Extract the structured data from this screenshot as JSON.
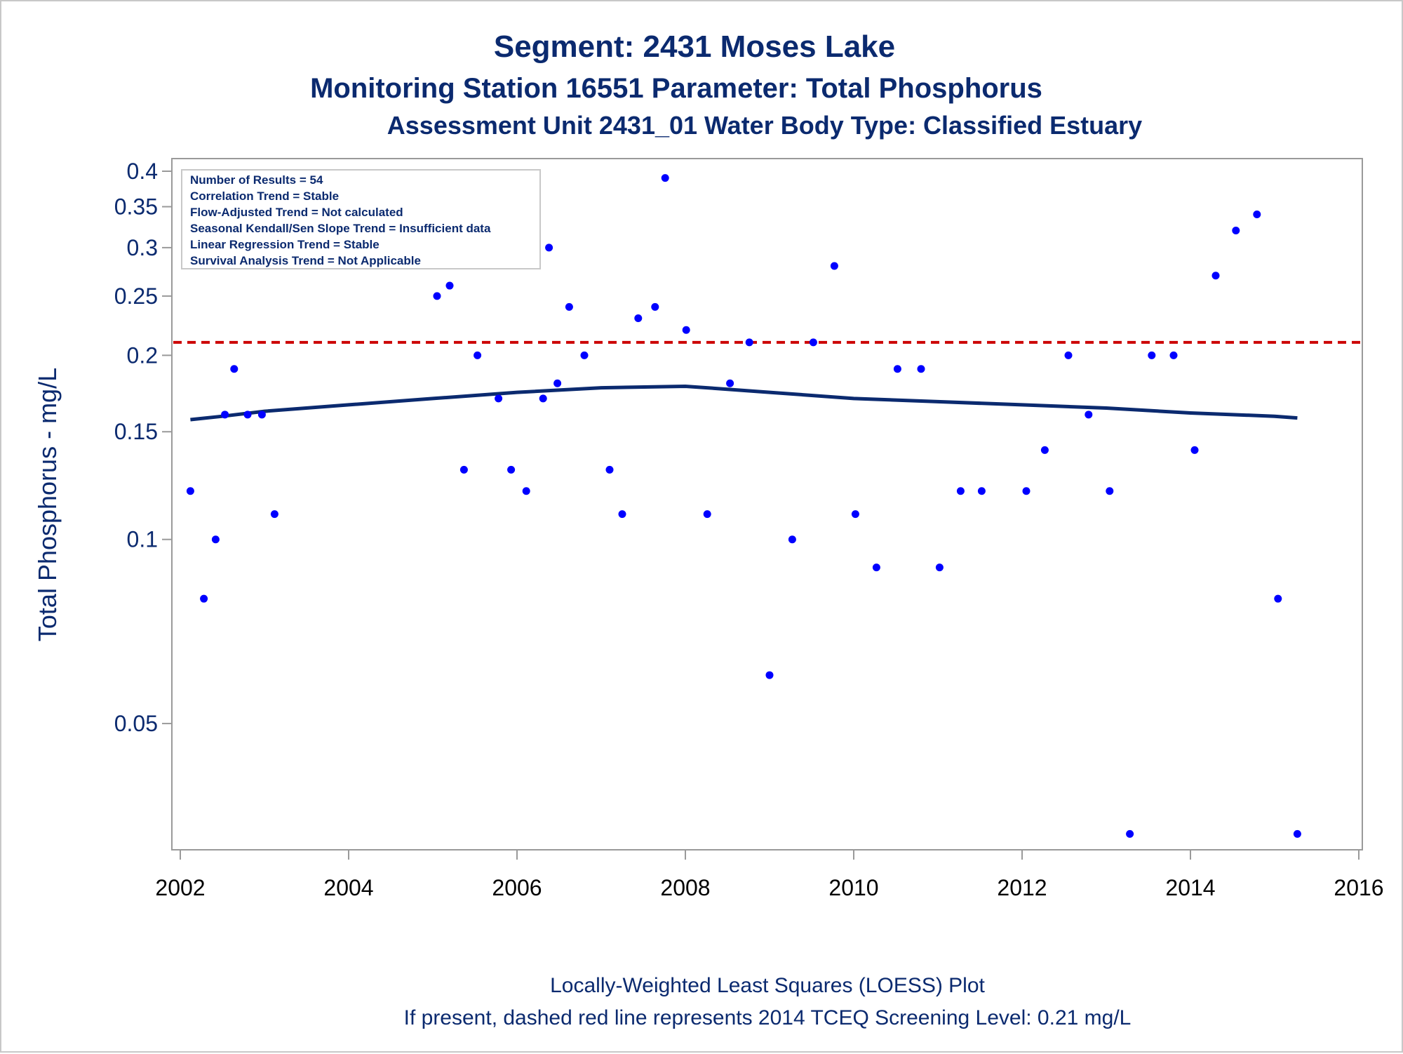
{
  "chart_data": {
    "type": "scatter",
    "title": "Segment: 2431  Moses Lake",
    "subtitle1": "Monitoring Station 16551 Parameter: Total Phosphorus",
    "subtitle2": "Assessment Unit 2431_01   Water Body Type: Classified Estuary",
    "ylabel": "Total Phosphorus - mg/L",
    "xlabel": "",
    "y_scale": "log",
    "xlim": [
      2002.0,
      2016.0
    ],
    "ylim": [
      0.032,
      0.4
    ],
    "x_ticks": [
      "2002",
      "2004",
      "2006",
      "2008",
      "2010",
      "2012",
      "2014",
      "2016"
    ],
    "y_ticks": [
      {
        "value": 0.4,
        "label": "0.4"
      },
      {
        "value": 0.35,
        "label": "0.35"
      },
      {
        "value": 0.3,
        "label": "0.3"
      },
      {
        "value": 0.25,
        "label": "0.25"
      },
      {
        "value": 0.2,
        "label": "0.2"
      },
      {
        "value": 0.15,
        "label": "0.15"
      },
      {
        "value": 0.1,
        "label": "0.1"
      },
      {
        "value": 0.05,
        "label": "0.05"
      }
    ],
    "grid": false,
    "stats_box": [
      "Number of Results = 54",
      "Correlation Trend = Stable",
      "Flow-Adjusted Trend = Not calculated",
      "Seasonal Kendall/Sen Slope Trend = Insufficient data",
      "Linear Regression Trend = Stable",
      "Survival Analysis Trend = Not Applicable"
    ],
    "stats_box_placement": "top-left",
    "screening_level": {
      "value": 0.21,
      "color": "#cc0000",
      "style": "dashed"
    },
    "points_color": "#0000ff",
    "loess_color": "#0b2a6f",
    "footnote1": "Locally-Weighted Least Squares (LOESS) Plot",
    "footnote2": "If present, dashed red line represents 2014 TCEQ Screening Level: 0.21 mg/L",
    "points": [
      {
        "x": 2002.12,
        "y": 0.12
      },
      {
        "x": 2002.28,
        "y": 0.08
      },
      {
        "x": 2002.42,
        "y": 0.1
      },
      {
        "x": 2002.53,
        "y": 0.16
      },
      {
        "x": 2002.64,
        "y": 0.19
      },
      {
        "x": 2002.8,
        "y": 0.16
      },
      {
        "x": 2002.97,
        "y": 0.16
      },
      {
        "x": 2003.12,
        "y": 0.11
      },
      {
        "x": 2005.05,
        "y": 0.25
      },
      {
        "x": 2005.2,
        "y": 0.26
      },
      {
        "x": 2005.37,
        "y": 0.13
      },
      {
        "x": 2005.53,
        "y": 0.2
      },
      {
        "x": 2005.78,
        "y": 0.17
      },
      {
        "x": 2005.93,
        "y": 0.13
      },
      {
        "x": 2006.11,
        "y": 0.12
      },
      {
        "x": 2006.31,
        "y": 0.17
      },
      {
        "x": 2006.38,
        "y": 0.3
      },
      {
        "x": 2006.48,
        "y": 0.18
      },
      {
        "x": 2006.62,
        "y": 0.24
      },
      {
        "x": 2006.8,
        "y": 0.2
      },
      {
        "x": 2007.1,
        "y": 0.13
      },
      {
        "x": 2007.25,
        "y": 0.11
      },
      {
        "x": 2007.44,
        "y": 0.23
      },
      {
        "x": 2007.64,
        "y": 0.24
      },
      {
        "x": 2007.76,
        "y": 0.39
      },
      {
        "x": 2008.01,
        "y": 0.22
      },
      {
        "x": 2008.26,
        "y": 0.11
      },
      {
        "x": 2008.53,
        "y": 0.18
      },
      {
        "x": 2008.76,
        "y": 0.21
      },
      {
        "x": 2009.0,
        "y": 0.06
      },
      {
        "x": 2009.27,
        "y": 0.1
      },
      {
        "x": 2009.52,
        "y": 0.21
      },
      {
        "x": 2009.77,
        "y": 0.28
      },
      {
        "x": 2010.02,
        "y": 0.11
      },
      {
        "x": 2010.27,
        "y": 0.09
      },
      {
        "x": 2010.52,
        "y": 0.19
      },
      {
        "x": 2010.8,
        "y": 0.19
      },
      {
        "x": 2011.02,
        "y": 0.09
      },
      {
        "x": 2011.27,
        "y": 0.12
      },
      {
        "x": 2011.52,
        "y": 0.12
      },
      {
        "x": 2012.05,
        "y": 0.12
      },
      {
        "x": 2012.27,
        "y": 0.14
      },
      {
        "x": 2012.55,
        "y": 0.2
      },
      {
        "x": 2012.79,
        "y": 0.16
      },
      {
        "x": 2013.04,
        "y": 0.12
      },
      {
        "x": 2013.28,
        "y": 0.033
      },
      {
        "x": 2013.54,
        "y": 0.2
      },
      {
        "x": 2013.8,
        "y": 0.2
      },
      {
        "x": 2014.05,
        "y": 0.14
      },
      {
        "x": 2014.3,
        "y": 0.27
      },
      {
        "x": 2014.54,
        "y": 0.32
      },
      {
        "x": 2014.79,
        "y": 0.34
      },
      {
        "x": 2015.04,
        "y": 0.08
      },
      {
        "x": 2015.27,
        "y": 0.033
      }
    ],
    "loess": [
      {
        "x": 2002.12,
        "y": 0.157
      },
      {
        "x": 2002.5,
        "y": 0.159
      },
      {
        "x": 2003.0,
        "y": 0.162
      },
      {
        "x": 2004.0,
        "y": 0.166
      },
      {
        "x": 2005.0,
        "y": 0.17
      },
      {
        "x": 2006.0,
        "y": 0.174
      },
      {
        "x": 2007.0,
        "y": 0.177
      },
      {
        "x": 2008.0,
        "y": 0.178
      },
      {
        "x": 2008.5,
        "y": 0.176
      },
      {
        "x": 2009.0,
        "y": 0.174
      },
      {
        "x": 2010.0,
        "y": 0.17
      },
      {
        "x": 2011.0,
        "y": 0.168
      },
      {
        "x": 2012.0,
        "y": 0.166
      },
      {
        "x": 2013.0,
        "y": 0.164
      },
      {
        "x": 2014.0,
        "y": 0.161
      },
      {
        "x": 2015.0,
        "y": 0.159
      },
      {
        "x": 2015.27,
        "y": 0.158
      }
    ]
  }
}
